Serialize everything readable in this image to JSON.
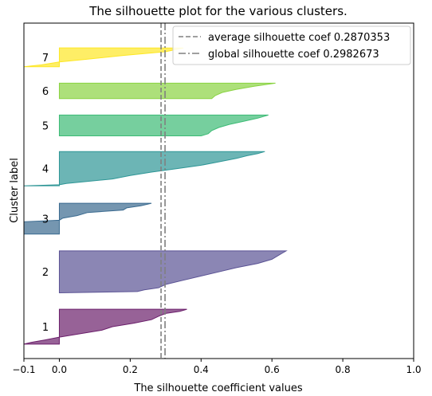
{
  "chart_data": {
    "type": "area",
    "title": "The silhouette plot for the various clusters.",
    "xlabel": "The silhouette coefficient values",
    "ylabel": "Cluster label",
    "xlim": [
      -0.1,
      1.0
    ],
    "ylim": [
      0,
      100
    ],
    "xticks": [
      -0.1,
      0.0,
      0.2,
      0.4,
      0.6,
      0.8,
      1.0
    ],
    "xtick_labels": [
      "−0.1",
      "0.0",
      "0.2",
      "0.4",
      "0.6",
      "0.8",
      "1.0"
    ],
    "grid": false,
    "legend_position": "top-right",
    "reference_lines": [
      {
        "label": "average silhouette coef 0.2870353",
        "value": 0.2870353,
        "style": "dashed",
        "color": "#808080"
      },
      {
        "label": "global silhouette coef 0.2982673",
        "value": 0.2982673,
        "style": "dashdot",
        "color": "#808080"
      }
    ],
    "clusters": [
      {
        "label": "1",
        "color": "#6b1f6b",
        "y_start": 4.3,
        "y_end": 14.7,
        "top_value": 0.36,
        "bottom_value": -0.1,
        "profile": [
          [
            0,
            0.36
          ],
          [
            0.06,
            0.34
          ],
          [
            0.12,
            0.3
          ],
          [
            0.2,
            0.28
          ],
          [
            0.3,
            0.26
          ],
          [
            0.4,
            0.21
          ],
          [
            0.5,
            0.15
          ],
          [
            0.6,
            0.12
          ],
          [
            0.7,
            0.06
          ],
          [
            0.8,
            0.0
          ],
          [
            0.88,
            -0.04
          ],
          [
            0.95,
            -0.08
          ],
          [
            1,
            -0.1
          ]
        ]
      },
      {
        "label": "2",
        "color": "#5a5294",
        "y_start": 19.6,
        "y_end": 32.1,
        "top_value": 0.64,
        "bottom_value": 0.0,
        "profile": [
          [
            0,
            0.64
          ],
          [
            0.05,
            0.63
          ],
          [
            0.1,
            0.62
          ],
          [
            0.2,
            0.6
          ],
          [
            0.3,
            0.56
          ],
          [
            0.4,
            0.5
          ],
          [
            0.5,
            0.45
          ],
          [
            0.6,
            0.4
          ],
          [
            0.7,
            0.35
          ],
          [
            0.8,
            0.3
          ],
          [
            0.88,
            0.28
          ],
          [
            0.93,
            0.24
          ],
          [
            0.97,
            0.22
          ],
          [
            1,
            0.0
          ]
        ]
      },
      {
        "label": "3",
        "color": "#3a6a8f",
        "y_start": 37.1,
        "y_end": 46.3,
        "top_value": 0.26,
        "bottom_value": -0.1,
        "profile": [
          [
            0,
            0.26
          ],
          [
            0.08,
            0.23
          ],
          [
            0.15,
            0.19
          ],
          [
            0.22,
            0.18
          ],
          [
            0.3,
            0.08
          ],
          [
            0.4,
            0.05
          ],
          [
            0.48,
            0.01
          ],
          [
            0.55,
            0.0
          ],
          [
            0.6,
            -0.1
          ],
          [
            1,
            -0.1
          ]
        ]
      },
      {
        "label": "4",
        "color": "#2e9696",
        "y_start": 51.5,
        "y_end": 61.7,
        "top_value": 0.58,
        "bottom_value": -0.1,
        "profile": [
          [
            0,
            0.58
          ],
          [
            0.06,
            0.56
          ],
          [
            0.12,
            0.53
          ],
          [
            0.2,
            0.5
          ],
          [
            0.3,
            0.45
          ],
          [
            0.4,
            0.4
          ],
          [
            0.5,
            0.33
          ],
          [
            0.6,
            0.26
          ],
          [
            0.7,
            0.2
          ],
          [
            0.8,
            0.15
          ],
          [
            0.87,
            0.08
          ],
          [
            0.93,
            0.02
          ],
          [
            0.97,
            0.0
          ],
          [
            1,
            -0.1
          ]
        ]
      },
      {
        "label": "5",
        "color": "#3cbb75",
        "y_start": 66.4,
        "y_end": 72.6,
        "top_value": 0.59,
        "bottom_value": 0.0,
        "profile": [
          [
            0,
            0.59
          ],
          [
            0.15,
            0.56
          ],
          [
            0.3,
            0.52
          ],
          [
            0.45,
            0.48
          ],
          [
            0.6,
            0.45
          ],
          [
            0.75,
            0.43
          ],
          [
            0.9,
            0.42
          ],
          [
            1,
            0.4
          ]
        ]
      },
      {
        "label": "6",
        "color": "#8ad342",
        "y_start": 77.5,
        "y_end": 82.1,
        "top_value": 0.61,
        "bottom_value": 0.0,
        "profile": [
          [
            0,
            0.61
          ],
          [
            0.2,
            0.55
          ],
          [
            0.4,
            0.5
          ],
          [
            0.6,
            0.46
          ],
          [
            0.8,
            0.44
          ],
          [
            1,
            0.43
          ]
        ]
      },
      {
        "label": "7",
        "color": "#fde725",
        "y_start": 87.0,
        "y_end": 92.6,
        "top_value": 0.35,
        "bottom_value": -0.1,
        "profile": [
          [
            0,
            0.35
          ],
          [
            0.2,
            0.3
          ],
          [
            0.4,
            0.18
          ],
          [
            0.6,
            0.08
          ],
          [
            0.75,
            0.0
          ],
          [
            0.9,
            -0.05
          ],
          [
            1,
            -0.1
          ]
        ]
      }
    ]
  }
}
